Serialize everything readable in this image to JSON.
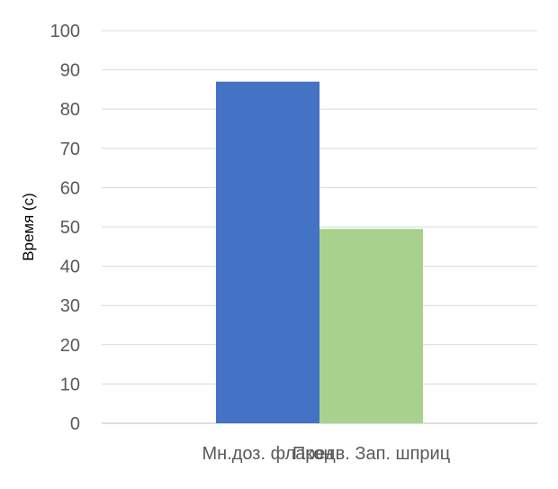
{
  "chart_data": {
    "type": "bar",
    "categories": [
      "Мн.доз. флакон",
      "Предв. Зап. шприц"
    ],
    "values": [
      87,
      49.5
    ],
    "bar_colors": [
      "#4472c4",
      "#a9d18e"
    ],
    "title": "",
    "xlabel": "",
    "ylabel": "Время (с)",
    "ylim": [
      0,
      100
    ],
    "yticks": [
      0,
      10,
      20,
      30,
      40,
      50,
      60,
      70,
      80,
      90,
      100
    ],
    "grid": true,
    "legend": "none"
  },
  "colors": {
    "gridline": "#d9d9d9",
    "tick_text": "#595959"
  }
}
